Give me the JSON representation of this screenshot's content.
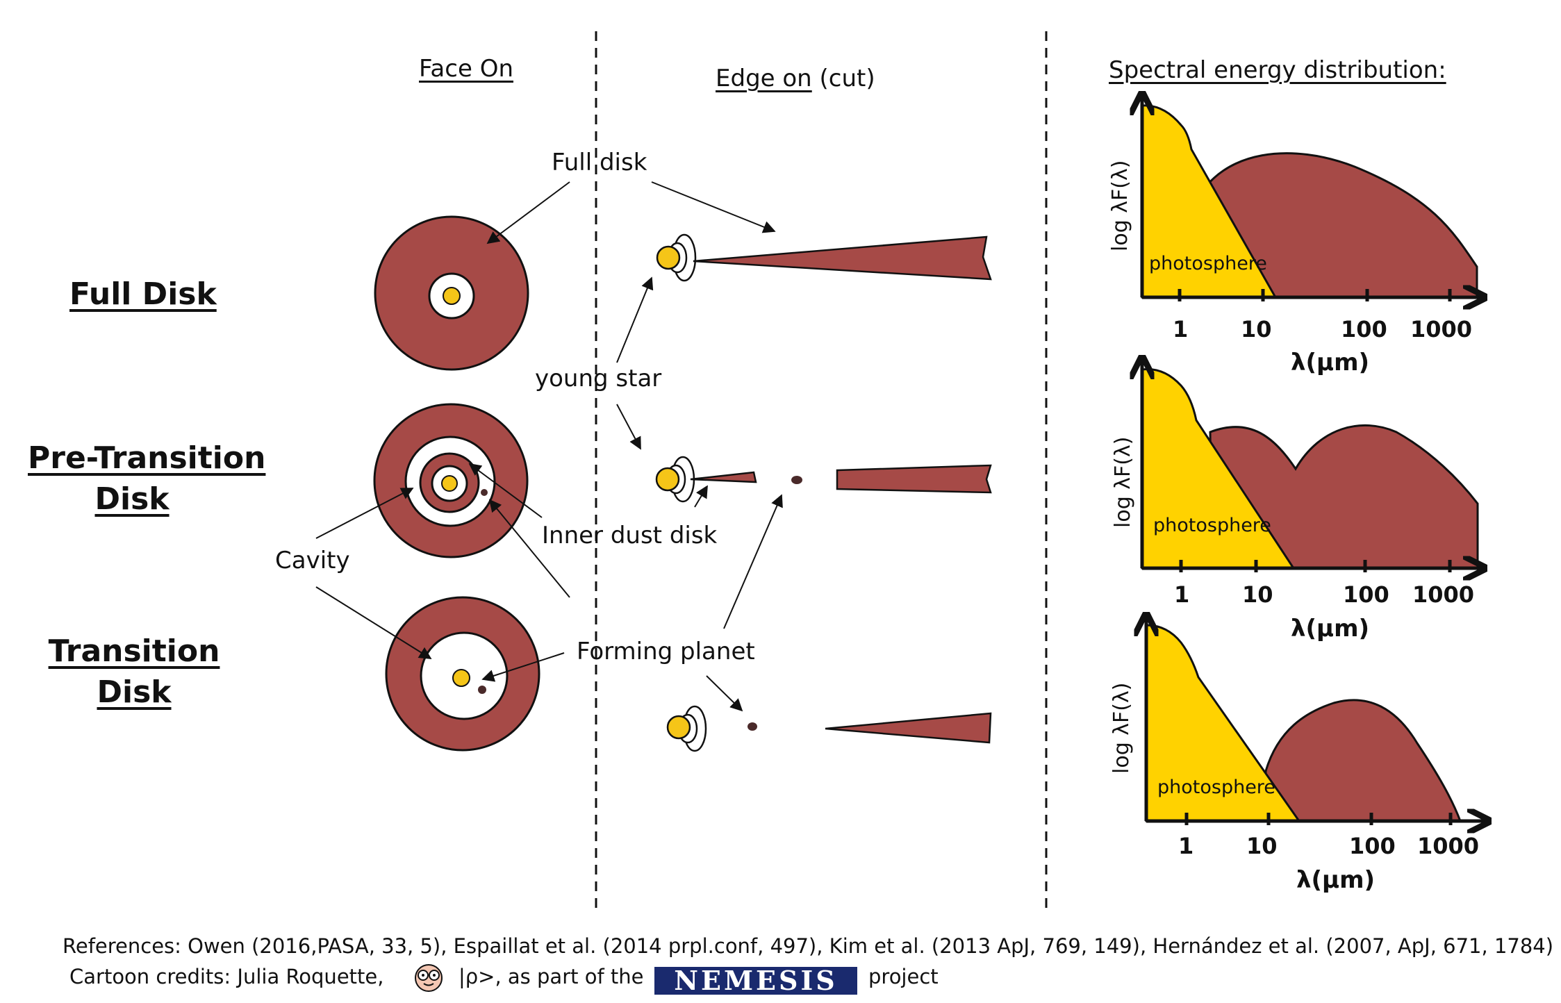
{
  "columns": {
    "face_on": "Face On",
    "edge_on": "Edge on",
    "edge_on_suffix": "(cut)",
    "sed": "Spectral energy distribution:"
  },
  "rows": {
    "full_disk": "Full Disk",
    "pre_transition": [
      "Pre-Transition",
      "Disk"
    ],
    "transition": [
      "Transition",
      "Disk"
    ]
  },
  "callouts": {
    "full_disk": "Full disk",
    "young_star": "young star",
    "inner_dust_disk": "Inner dust disk",
    "cavity": "Cavity",
    "forming_planet": "Forming planet"
  },
  "sed": {
    "y_label": "log λF(λ)",
    "x_label": "λ(μm)",
    "ticks": [
      "1",
      "10",
      "100",
      "1000"
    ],
    "photosphere": "photosphere"
  },
  "colors": {
    "disk": "#a64a47",
    "star": "#f5c518",
    "photosphere": "#ffd200",
    "nemesis_bg": "#1a2a6e"
  },
  "footer": {
    "references": "References: Owen (2016,PASA, 33, 5), Espaillat et al. (2014 prpl.conf, 497), Kim et al. (2013 ApJ, 769, 149), Hernández et al. (2007, ApJ, 671, 1784)",
    "credits_prefix": "Cartoon credits: Julia Roquette,",
    "credits_mid": "|ρ>, as part of the",
    "project_name": "NEMESIS",
    "credits_suffix": "project"
  }
}
